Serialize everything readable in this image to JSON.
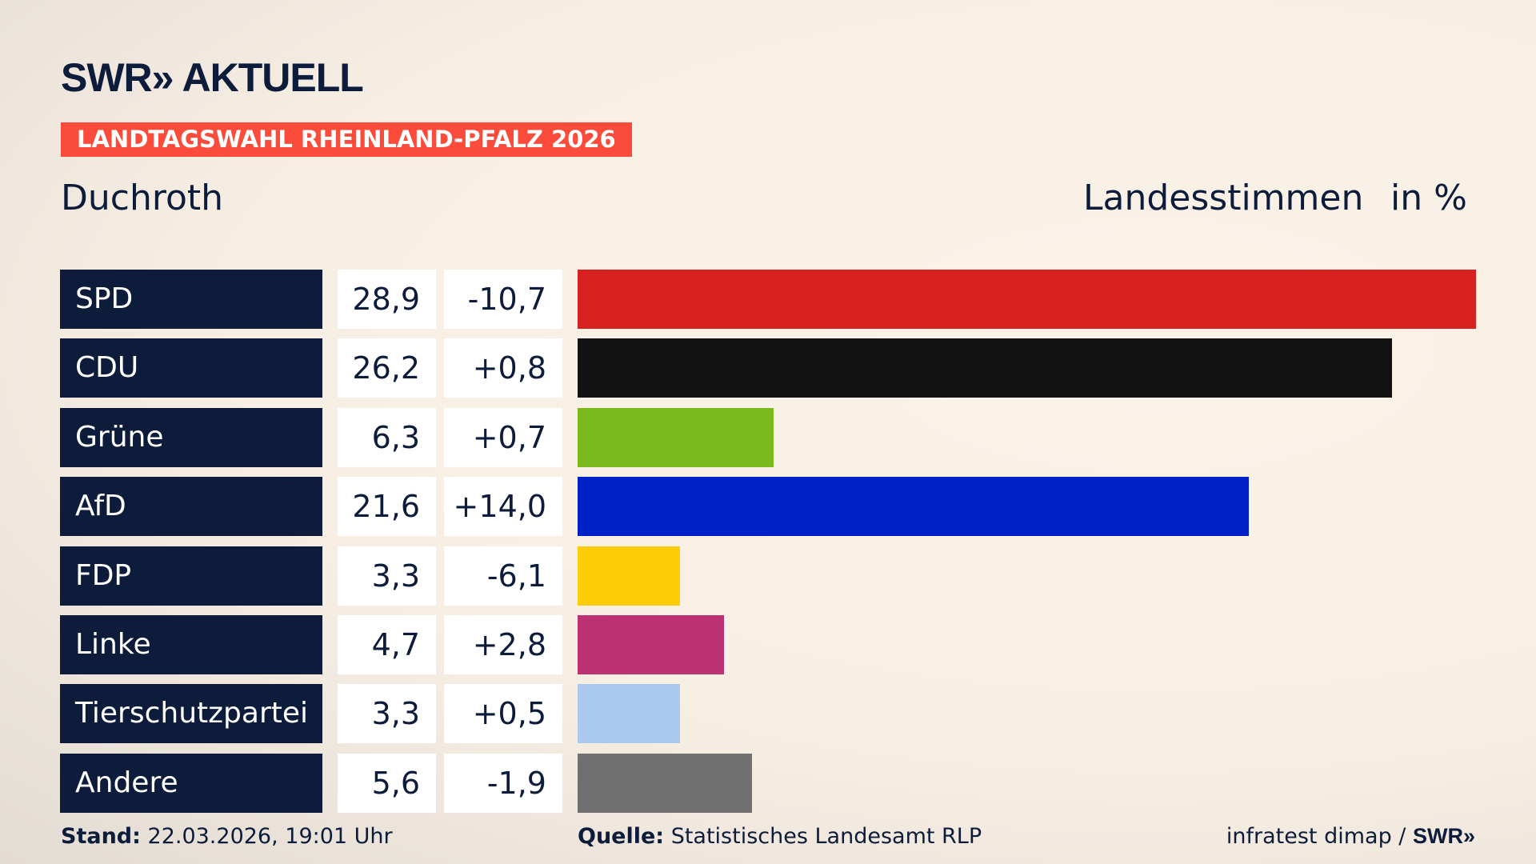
{
  "header": {
    "logo": "SWR» AKTUELL",
    "banner": "LANDTAGSWAHL RHEINLAND-PFALZ 2026",
    "place": "Duchroth",
    "column_label": "Landesstimmen",
    "unit": "in %"
  },
  "chart_data": {
    "type": "bar",
    "orientation": "horizontal",
    "categories": [
      "SPD",
      "CDU",
      "Grüne",
      "AfD",
      "FDP",
      "Linke",
      "Tierschutzpartei",
      "Andere"
    ],
    "values": [
      28.9,
      26.2,
      6.3,
      21.6,
      3.3,
      4.7,
      3.3,
      5.6
    ],
    "values_label": [
      "28,9",
      "26,2",
      "6,3",
      "21,6",
      "3,3",
      "4,7",
      "3,3",
      "5,6"
    ],
    "diff_label": [
      "-10,7",
      "+0,8",
      "+0,7",
      "+14,0",
      "-6,1",
      "+2,8",
      "+0,5",
      "-1,9"
    ],
    "colors": [
      "#d72020",
      "#121212",
      "#7aba1c",
      "#0020c8",
      "#ffcc0a",
      "#bb3172",
      "#abc8ee",
      "#707070"
    ],
    "xlim": [
      0,
      28.9
    ],
    "ylabel": "Landesstimmen",
    "unit": "in %"
  },
  "footer": {
    "stand_label": "Stand:",
    "stand": "22.03.2026, 19:01 Uhr",
    "source_label": "Quelle:",
    "source": "Statistisches Landesamt RLP",
    "credit": "infratest dimap / ",
    "credit_logo": "SWR»"
  }
}
